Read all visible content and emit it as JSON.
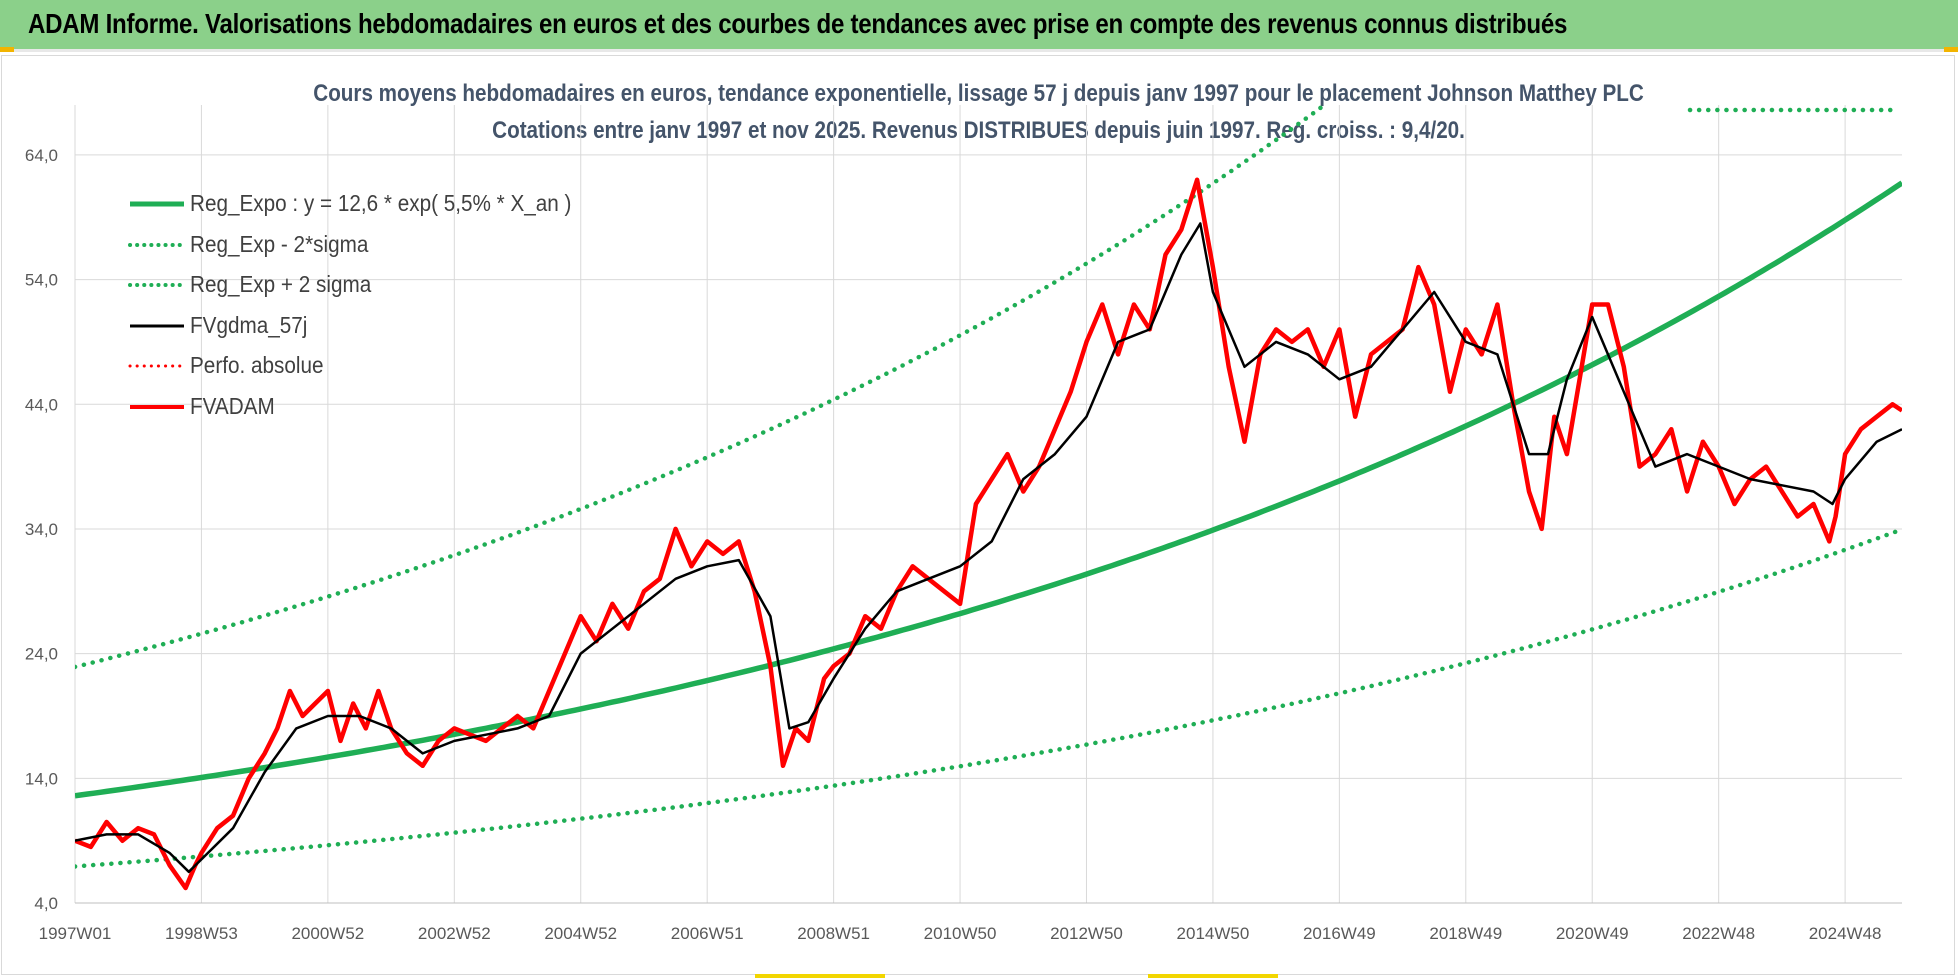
{
  "banner": {
    "title": "ADAM Informe. Valorisations hebdomadaires en euros et des courbes de tendances avec prise en compte des revenus connus distribués"
  },
  "colors": {
    "banner_bg": "#8bd08a",
    "reg_green": "#1fae55",
    "perf_red": "#ff0000",
    "avg_black": "#000000",
    "title_color": "#44546a",
    "grid": "#d9d9d9"
  },
  "chart_data": {
    "type": "line",
    "title": "Cours moyens hebdomadaires en euros, tendance exponentielle, lissage 57 j depuis janv 1997 pour le placement Johnson Matthey PLC",
    "subtitle": "Cotations entre janv 1997 et nov 2025. Revenus DISTRIBUES depuis juin 1997. Reg. croiss. : 9,4/20.",
    "xlabel": "",
    "ylabel": "",
    "xlim": [
      1997.0,
      2025.9
    ],
    "ylim": [
      4,
      68
    ],
    "y_ticks": [
      4,
      14,
      24,
      34,
      44,
      54,
      64
    ],
    "y_tick_labels": [
      "4,0",
      "14,0",
      "24,0",
      "34,0",
      "44,0",
      "54,0",
      "64,0"
    ],
    "x_ticks": [
      1997.0,
      1999.0,
      2001.0,
      2003.0,
      2005.0,
      2007.0,
      2009.0,
      2011.0,
      2013.0,
      2015.0,
      2017.0,
      2019.0,
      2021.0,
      2023.0,
      2025.0
    ],
    "x_tick_labels": [
      "1997W01",
      "1998W53",
      "2000W52",
      "2002W52",
      "2004W52",
      "2006W51",
      "2008W51",
      "2010W50",
      "2012W50",
      "2014W50",
      "2016W49",
      "2018W49",
      "2020W49",
      "2022W48",
      "2024W48"
    ],
    "legend_position": "top-left",
    "regression": {
      "a": 12.6,
      "rate_pct": 5.5,
      "sigma_factor_low": 0.55,
      "sigma_factor_high": 1.82
    },
    "legend": [
      {
        "name": "Reg_Expo : y = 12,6 * exp( 5,5% *  X_an )",
        "color": "#1fae55",
        "style": "solid",
        "width": 5
      },
      {
        "name": "Reg_Exp - 2*sigma",
        "color": "#1fae55",
        "style": "dotted",
        "width": 4
      },
      {
        "name": "Reg_Exp + 2 sigma",
        "color": "#1fae55",
        "style": "dotted",
        "width": 4
      },
      {
        "name": "FVgdma_57j",
        "color": "#000000",
        "style": "solid",
        "width": 3
      },
      {
        "name": "Perfo. absolue",
        "color": "#ff0000",
        "style": "dotted",
        "width": 3
      },
      {
        "name": "FVADAM",
        "color": "#ff0000",
        "style": "solid",
        "width": 4
      }
    ],
    "series": [
      {
        "name": "FVADAM",
        "x": [
          1997.0,
          1997.25,
          1997.5,
          1997.75,
          1998.0,
          1998.25,
          1998.5,
          1998.75,
          1998.9,
          1999.0,
          1999.25,
          1999.5,
          1999.75,
          2000.0,
          2000.2,
          2000.4,
          2000.6,
          2000.8,
          2001.0,
          2001.2,
          2001.4,
          2001.6,
          2001.8,
          2002.0,
          2002.25,
          2002.5,
          2002.75,
          2003.0,
          2003.25,
          2003.5,
          2003.75,
          2004.0,
          2004.25,
          2004.5,
          2004.75,
          2005.0,
          2005.25,
          2005.5,
          2005.75,
          2006.0,
          2006.25,
          2006.5,
          2006.75,
          2007.0,
          2007.25,
          2007.5,
          2007.75,
          2008.0,
          2008.2,
          2008.4,
          2008.6,
          2008.75,
          2008.85,
          2009.0,
          2009.25,
          2009.5,
          2009.75,
          2010.0,
          2010.25,
          2010.5,
          2010.75,
          2011.0,
          2011.25,
          2011.5,
          2011.75,
          2012.0,
          2012.25,
          2012.5,
          2012.75,
          2013.0,
          2013.25,
          2013.5,
          2013.75,
          2014.0,
          2014.25,
          2014.5,
          2014.75,
          2015.0,
          2015.25,
          2015.5,
          2015.75,
          2016.0,
          2016.25,
          2016.5,
          2016.75,
          2017.0,
          2017.25,
          2017.5,
          2017.75,
          2018.0,
          2018.25,
          2018.5,
          2018.75,
          2019.0,
          2019.25,
          2019.5,
          2019.75,
          2020.0,
          2020.2,
          2020.4,
          2020.6,
          2020.8,
          2021.0,
          2021.25,
          2021.5,
          2021.75,
          2022.0,
          2022.25,
          2022.5,
          2022.75,
          2023.0,
          2023.25,
          2023.5,
          2023.75,
          2024.0,
          2024.25,
          2024.5,
          2024.75,
          2024.85,
          2025.0,
          2025.25,
          2025.5,
          2025.75,
          2025.9
        ],
        "values": [
          9.0,
          8.5,
          10.5,
          9.0,
          10.0,
          9.5,
          7.0,
          5.2,
          7.0,
          8.0,
          10.0,
          11.0,
          14.0,
          16.0,
          18.0,
          21.0,
          19.0,
          20.0,
          21.0,
          17.0,
          20.0,
          18.0,
          21.0,
          18.0,
          16.0,
          15.0,
          17.0,
          18.0,
          17.5,
          17.0,
          18.0,
          19.0,
          18.0,
          21.0,
          24.0,
          27.0,
          25.0,
          28.0,
          26.0,
          29.0,
          30.0,
          34.0,
          31.0,
          33.0,
          32.0,
          33.0,
          29.0,
          23.0,
          15.0,
          18.0,
          17.0,
          20.0,
          22.0,
          23.0,
          24.0,
          27.0,
          26.0,
          29.0,
          31.0,
          30.0,
          29.0,
          28.0,
          36.0,
          38.0,
          40.0,
          37.0,
          39.0,
          42.0,
          45.0,
          49.0,
          52.0,
          48.0,
          52.0,
          50.0,
          56.0,
          58.0,
          62.0,
          55.0,
          47.0,
          41.0,
          48.0,
          50.0,
          49.0,
          50.0,
          47.0,
          50.0,
          43.0,
          48.0,
          49.0,
          50.0,
          55.0,
          52.0,
          45.0,
          50.0,
          48.0,
          52.0,
          44.0,
          37.0,
          34.0,
          43.0,
          40.0,
          46.0,
          52.0,
          52.0,
          47.0,
          39.0,
          40.0,
          42.0,
          37.0,
          41.0,
          39.0,
          36.0,
          38.0,
          39.0,
          37.0,
          35.0,
          36.0,
          33.0,
          35.0,
          40.0,
          42.0,
          43.0,
          44.0,
          43.5
        ]
      },
      {
        "name": "FVgdma_57j",
        "x": [
          1997.0,
          1997.5,
          1998.0,
          1998.5,
          1998.8,
          1999.0,
          1999.5,
          2000.0,
          2000.5,
          2001.0,
          2001.5,
          2002.0,
          2002.5,
          2003.0,
          2003.5,
          2004.0,
          2004.5,
          2005.0,
          2005.5,
          2006.0,
          2006.5,
          2007.0,
          2007.5,
          2008.0,
          2008.3,
          2008.6,
          2009.0,
          2009.5,
          2010.0,
          2010.5,
          2011.0,
          2011.5,
          2012.0,
          2012.5,
          2013.0,
          2013.5,
          2014.0,
          2014.5,
          2014.8,
          2015.0,
          2015.5,
          2016.0,
          2016.5,
          2017.0,
          2017.5,
          2018.0,
          2018.5,
          2019.0,
          2019.5,
          2020.0,
          2020.3,
          2020.6,
          2021.0,
          2021.5,
          2022.0,
          2022.5,
          2023.0,
          2023.5,
          2024.0,
          2024.5,
          2024.8,
          2025.0,
          2025.5,
          2025.9
        ],
        "values": [
          9.0,
          9.5,
          9.5,
          8.0,
          6.5,
          7.5,
          10.0,
          14.5,
          18.0,
          19.0,
          19.0,
          18.0,
          16.0,
          17.0,
          17.5,
          18.0,
          19.0,
          24.0,
          26.0,
          28.0,
          30.0,
          31.0,
          31.5,
          27.0,
          18.0,
          18.5,
          22.0,
          26.0,
          29.0,
          30.0,
          31.0,
          33.0,
          38.0,
          40.0,
          43.0,
          49.0,
          50.0,
          56.0,
          58.5,
          53.0,
          47.0,
          49.0,
          48.0,
          46.0,
          47.0,
          50.0,
          53.0,
          49.0,
          48.0,
          40.0,
          40.0,
          46.0,
          51.0,
          45.0,
          39.0,
          40.0,
          39.0,
          38.0,
          37.5,
          37.0,
          36.0,
          38.0,
          41.0,
          42.0
        ]
      }
    ]
  }
}
